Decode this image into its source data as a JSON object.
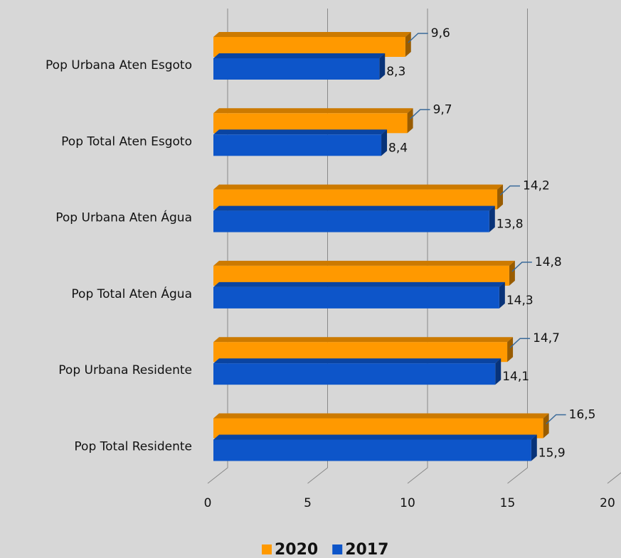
{
  "chart_data": {
    "type": "bar",
    "orientation": "horizontal",
    "categories": [
      "Pop Urbana Aten Esgoto",
      "Pop Total Aten Esgoto",
      "Pop Urbana Aten Água",
      "Pop Total Aten Água",
      "Pop Urbana  Residente",
      "Pop Total Residente"
    ],
    "series": [
      {
        "name": "2020",
        "color": "#ff9900",
        "values": [
          9.6,
          9.7,
          14.2,
          14.8,
          14.7,
          16.5
        ],
        "value_labels": [
          "9,6",
          "9,7",
          "14,2",
          "14,8",
          "14,7",
          "16,5"
        ]
      },
      {
        "name": "2017",
        "color": "#0d55c9",
        "values": [
          8.3,
          8.4,
          13.8,
          14.3,
          14.1,
          15.9
        ],
        "value_labels": [
          "8,3",
          "8,4",
          "13,8",
          "14,3",
          "14,1",
          "15,9"
        ]
      }
    ],
    "xlim": [
      0,
      20
    ],
    "xticks": [
      0,
      5,
      10,
      15,
      20
    ],
    "grid": true,
    "legend": "bottom"
  }
}
